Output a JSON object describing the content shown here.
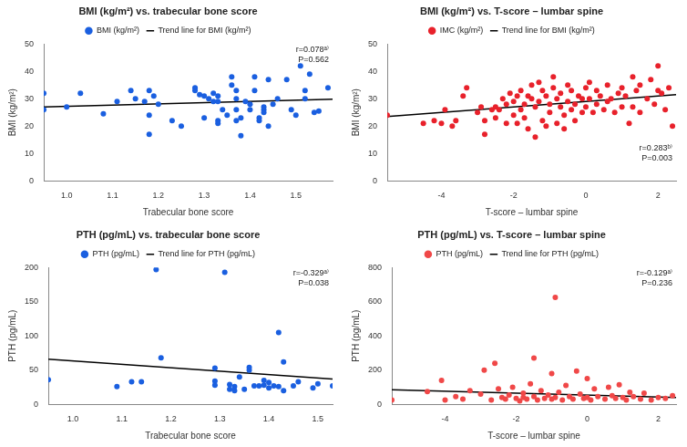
{
  "chart_data": [
    {
      "type": "scatter",
      "title": "BMI (kg/m²) vs. trabecular bone score",
      "x_label": "Trabecular bone score",
      "y_label": "BMI (kg/m²)",
      "xlim": [
        0.95,
        1.58
      ],
      "xticks": [
        {
          "value": 1,
          "label": "1.0"
        },
        {
          "value": 1.1,
          "label": "1.1"
        },
        {
          "value": 1.2,
          "label": "1.2"
        },
        {
          "value": 1.3,
          "label": "1.3"
        },
        {
          "value": 1.4,
          "label": "1.4"
        },
        {
          "value": 1.5,
          "label": "1.5"
        }
      ],
      "ylim": [
        0,
        50
      ],
      "yticks": [
        0,
        10,
        20,
        30,
        40,
        50
      ],
      "grid": false,
      "legend": "top",
      "annotations": [
        "r=0.078ᵃ⁾",
        "P=0.562"
      ],
      "series": [
        {
          "name": "BMI (kg/m²)",
          "type": "scatter",
          "marker": "circle",
          "color": "#1a5fe0",
          "x": [
            0.95,
            0.95,
            1.0,
            1.03,
            1.08,
            1.11,
            1.14,
            1.15,
            1.17,
            1.18,
            1.18,
            1.18,
            1.19,
            1.2,
            1.23,
            1.25,
            1.28,
            1.28,
            1.29,
            1.3,
            1.3,
            1.31,
            1.32,
            1.32,
            1.33,
            1.33,
            1.33,
            1.33,
            1.34,
            1.35,
            1.36,
            1.36,
            1.37,
            1.37,
            1.37,
            1.37,
            1.38,
            1.38,
            1.39,
            1.4,
            1.4,
            1.41,
            1.41,
            1.42,
            1.42,
            1.43,
            1.43,
            1.43,
            1.44,
            1.44,
            1.45,
            1.46,
            1.48,
            1.49,
            1.5,
            1.51,
            1.52,
            1.52,
            1.53,
            1.54,
            1.55,
            1.57
          ],
          "values": [
            32,
            26,
            27,
            32,
            24.5,
            29,
            33,
            30,
            29,
            17,
            24,
            33,
            31,
            28,
            22,
            20,
            34,
            33,
            31.5,
            31,
            23,
            30,
            32,
            29,
            31,
            29,
            22,
            21,
            26,
            24,
            38,
            35,
            33,
            30,
            26,
            22,
            16.5,
            23,
            29,
            28,
            26,
            38,
            33,
            23,
            22,
            26,
            25,
            27,
            20,
            37,
            28,
            30,
            37,
            26,
            24,
            42,
            33,
            30,
            39,
            25,
            25.5,
            34
          ]
        },
        {
          "name": "Trend line for BMI (kg/m²)",
          "type": "line",
          "line_style": "solid",
          "color": "#000000",
          "x": [
            0.95,
            1.58
          ],
          "values": [
            27,
            29.8
          ]
        }
      ]
    },
    {
      "type": "scatter",
      "title": "BMI (kg/m²) vs. T-score – lumbar spine",
      "x_label": "T-score – lumbar spine",
      "y_label": "BMI (kg/m²)",
      "xlim": [
        -5.5,
        2.5
      ],
      "xticks": [
        -4,
        -2,
        0,
        2
      ],
      "ylim": [
        0,
        50
      ],
      "yticks": [
        0,
        10,
        20,
        30,
        40,
        50
      ],
      "grid": false,
      "legend": "top",
      "annotations": [
        "r=0.283ᵇ⁾",
        "P=0.003"
      ],
      "series": [
        {
          "name": "IMC (kg/m²)",
          "type": "scatter",
          "marker": "circle",
          "color": "#e8212b",
          "x": [
            -5.5,
            -4.5,
            -4.2,
            -4.0,
            -3.9,
            -3.7,
            -3.6,
            -3.4,
            -3.3,
            -3.0,
            -2.9,
            -2.8,
            -2.8,
            -2.6,
            -2.5,
            -2.5,
            -2.4,
            -2.3,
            -2.2,
            -2.2,
            -2.1,
            -2.0,
            -2.0,
            -1.9,
            -1.9,
            -1.8,
            -1.8,
            -1.7,
            -1.7,
            -1.6,
            -1.6,
            -1.5,
            -1.5,
            -1.4,
            -1.4,
            -1.3,
            -1.3,
            -1.2,
            -1.2,
            -1.1,
            -1.1,
            -1.0,
            -1.0,
            -0.9,
            -0.9,
            -0.8,
            -0.8,
            -0.7,
            -0.7,
            -0.6,
            -0.6,
            -0.5,
            -0.5,
            -0.4,
            -0.4,
            -0.3,
            -0.3,
            -0.2,
            -0.1,
            -0.1,
            0,
            0,
            0.1,
            0.1,
            0.2,
            0.3,
            0.3,
            0.4,
            0.5,
            0.6,
            0.6,
            0.7,
            0.8,
            0.9,
            1.0,
            1.0,
            1.1,
            1.2,
            1.3,
            1.3,
            1.4,
            1.5,
            1.5,
            1.7,
            1.8,
            1.9,
            2.0,
            2.0,
            2.1,
            2.2,
            2.3,
            2.4
          ],
          "values": [
            24,
            21,
            22,
            21,
            26,
            20,
            22,
            31,
            34,
            25,
            27,
            22,
            17,
            26,
            23,
            27,
            26,
            30,
            21,
            28,
            32,
            24,
            29,
            31,
            21,
            33,
            26,
            28,
            23,
            31,
            19,
            30,
            35,
            16,
            27,
            29,
            36,
            22,
            33,
            20,
            31,
            28,
            25,
            34,
            38,
            30,
            21,
            27,
            32,
            19,
            24,
            29,
            35,
            26,
            33,
            28,
            22,
            31,
            30,
            25,
            34,
            27,
            36,
            30,
            25,
            33,
            28,
            31,
            26,
            35,
            29,
            30,
            25,
            32,
            34,
            27,
            31,
            21,
            38,
            27,
            33,
            35,
            25,
            30,
            37,
            28,
            42,
            33,
            32,
            26,
            34,
            20
          ]
        },
        {
          "name": "Trend line for BMI (kg/m²)",
          "type": "line",
          "line_style": "solid",
          "color": "#000000",
          "x": [
            -5.5,
            2.5
          ],
          "values": [
            23.5,
            31.5
          ]
        }
      ]
    },
    {
      "type": "scatter",
      "title": "PTH (pg/mL) vs. trabecular bone score",
      "x_label": "Trabecular bone score",
      "y_label": "PTH (pg/mL)",
      "xlim": [
        0.95,
        1.53
      ],
      "xticks": [
        {
          "value": 1,
          "label": "1.0"
        },
        {
          "value": 1.1,
          "label": "1.1"
        },
        {
          "value": 1.2,
          "label": "1.2"
        },
        {
          "value": 1.3,
          "label": "1.3"
        },
        {
          "value": 1.4,
          "label": "1.4"
        },
        {
          "value": 1.5,
          "label": "1.5"
        }
      ],
      "ylim": [
        0,
        200
      ],
      "yticks": [
        0,
        50,
        100,
        150,
        200
      ],
      "grid": false,
      "legend": "top",
      "annotations": [
        "r=-0.329ᵃ⁾",
        "P=0.038"
      ],
      "series": [
        {
          "name": "PTH (pg/mL)",
          "type": "scatter",
          "marker": "circle",
          "color": "#1a5fe0",
          "x": [
            0.95,
            1.09,
            1.12,
            1.14,
            1.17,
            1.18,
            1.29,
            1.29,
            1.29,
            1.31,
            1.32,
            1.32,
            1.33,
            1.33,
            1.34,
            1.35,
            1.36,
            1.36,
            1.37,
            1.38,
            1.39,
            1.39,
            1.4,
            1.4,
            1.41,
            1.42,
            1.42,
            1.43,
            1.43,
            1.45,
            1.46,
            1.49,
            1.5,
            1.53
          ],
          "values": [
            36,
            26,
            33,
            33,
            197,
            68,
            53,
            34,
            28,
            193,
            22,
            29,
            26,
            20,
            40,
            22,
            50,
            54,
            27,
            27,
            28,
            35,
            24,
            32,
            27,
            105,
            26,
            62,
            20,
            27,
            33,
            24,
            30,
            27
          ]
        },
        {
          "name": "Trend line for PTH (pg/mL)",
          "type": "line",
          "line_style": "solid",
          "color": "#000000",
          "x": [
            0.95,
            1.53
          ],
          "values": [
            66,
            37
          ]
        }
      ]
    },
    {
      "type": "scatter",
      "title": "PTH (pg/mL) vs. T-score – lumbar spine",
      "x_label": "T-score – lumbar spine",
      "y_label": "PTH (pg/mL)",
      "xlim": [
        -5.5,
        2.5
      ],
      "xticks": [
        -4,
        -2,
        0,
        2
      ],
      "ylim": [
        0,
        800
      ],
      "yticks": [
        0,
        200,
        400,
        600,
        800
      ],
      "grid": false,
      "legend": "top",
      "annotations": [
        "r=-0.129ᵃ⁾",
        "P=0.236"
      ],
      "series": [
        {
          "name": "PTH (pg/mL)",
          "type": "scatter",
          "marker": "circle",
          "color": "#f04848",
          "x": [
            -5.5,
            -4.5,
            -4.1,
            -4.0,
            -3.7,
            -3.5,
            -3.3,
            -3.0,
            -2.9,
            -2.7,
            -2.6,
            -2.5,
            -2.4,
            -2.3,
            -2.2,
            -2.1,
            -2.0,
            -1.9,
            -1.8,
            -1.8,
            -1.7,
            -1.6,
            -1.5,
            -1.5,
            -1.4,
            -1.3,
            -1.2,
            -1.1,
            -1.0,
            -1.0,
            -0.9,
            -0.9,
            -0.8,
            -0.7,
            -0.6,
            -0.5,
            -0.4,
            -0.3,
            -0.2,
            -0.1,
            0,
            0,
            0.1,
            0.2,
            0.3,
            0.5,
            0.6,
            0.7,
            0.8,
            0.9,
            1.0,
            1.1,
            1.2,
            1.3,
            1.5,
            1.6,
            1.8,
            2.0,
            2.2,
            2.4
          ],
          "values": [
            25,
            75,
            140,
            25,
            45,
            30,
            80,
            60,
            200,
            25,
            240,
            90,
            40,
            30,
            55,
            100,
            35,
            20,
            65,
            40,
            30,
            120,
            270,
            45,
            25,
            80,
            35,
            55,
            180,
            30,
            625,
            40,
            70,
            25,
            110,
            45,
            30,
            195,
            60,
            35,
            150,
            40,
            25,
            90,
            45,
            30,
            100,
            50,
            35,
            115,
            40,
            25,
            70,
            45,
            30,
            65,
            25,
            40,
            35,
            50
          ]
        },
        {
          "name": "Trend line for PTH (pg/mL)",
          "type": "line",
          "line_style": "solid",
          "color": "#000000",
          "x": [
            -5.5,
            2.5
          ],
          "values": [
            85,
            40
          ]
        }
      ]
    }
  ]
}
